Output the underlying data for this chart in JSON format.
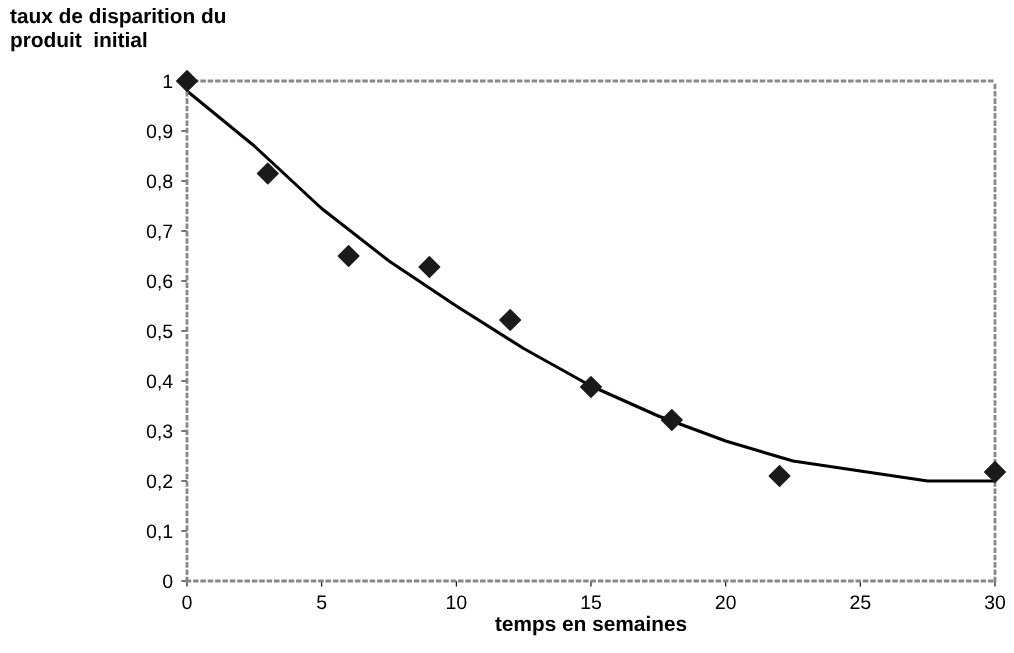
{
  "chart_data": {
    "type": "scatter",
    "ylabel": "taux de disparition du\nproduit  initial",
    "xlabel": "temps en semaines",
    "xlim": [
      0,
      30
    ],
    "xticks": [
      0,
      5,
      10,
      15,
      20,
      25,
      30
    ],
    "ylim": [
      0,
      1
    ],
    "yticks": [
      {
        "value": 0,
        "label": "0"
      },
      {
        "value": 0.1,
        "label": "0,1"
      },
      {
        "value": 0.2,
        "label": "0,2"
      },
      {
        "value": 0.3,
        "label": "0,3"
      },
      {
        "value": 0.4,
        "label": "0,4"
      },
      {
        "value": 0.5,
        "label": "0,5"
      },
      {
        "value": 0.6,
        "label": "0,6"
      },
      {
        "value": 0.7,
        "label": "0,7"
      },
      {
        "value": 0.8,
        "label": "0,8"
      },
      {
        "value": 0.9,
        "label": "0,9"
      },
      {
        "value": 1,
        "label": "1"
      }
    ],
    "grid": false,
    "legend": false,
    "marker": "diamond",
    "series": [
      {
        "type": "scatter",
        "color": "#1a1a1a",
        "x": [
          0,
          3,
          6,
          9,
          12,
          15,
          18,
          22,
          30
        ],
        "values": [
          1.0,
          0.815,
          0.65,
          0.628,
          0.522,
          0.388,
          0.322,
          0.21,
          0.218
        ]
      },
      {
        "type": "line",
        "color": "#000000",
        "marker": "none",
        "line_style": "solid",
        "x": [
          0,
          2.5,
          5,
          7.5,
          10,
          12.5,
          15,
          17.5,
          20,
          22.5,
          25,
          27.5,
          30
        ],
        "values": [
          0.98,
          0.87,
          0.745,
          0.64,
          0.55,
          0.465,
          0.39,
          0.33,
          0.28,
          0.24,
          0.22,
          0.2,
          0.2
        ]
      }
    ]
  }
}
